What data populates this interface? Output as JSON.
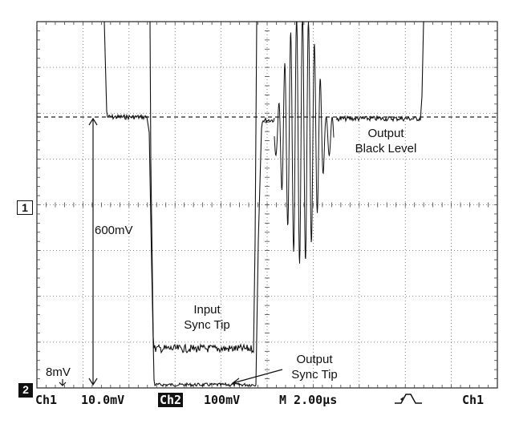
{
  "annotations": {
    "output_black_level": [
      "Output",
      "Black Level"
    ],
    "input_sync_tip": [
      "Input",
      "Sync Tip"
    ],
    "output_sync_tip": [
      "Output",
      "Sync Tip"
    ],
    "amplitude": "600mV",
    "offset": "8mV"
  },
  "markers": {
    "ch1": "1",
    "ch2": "2"
  },
  "status_bar": {
    "ch1_label": "Ch1",
    "ch1_scale": "10.0mV",
    "ch2_label": "Ch2",
    "ch2_scale": "100mV",
    "timebase": "M 2.00µs",
    "trigger_icon": "rising-edge-trigger-icon",
    "trigger_source": "Ch1"
  }
}
